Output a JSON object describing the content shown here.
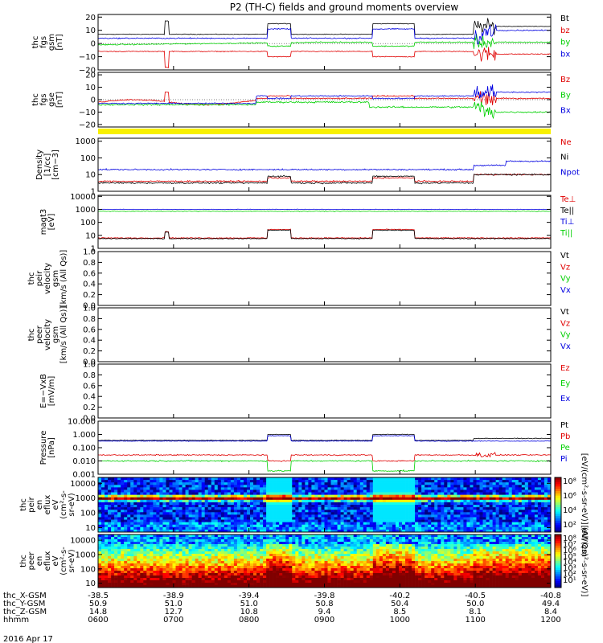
{
  "title": "P2 (TH-C) fields and ground moments overview",
  "date_label": "2016 Apr 17",
  "colors": {
    "black": "#000000",
    "red": "#e00000",
    "green": "#00d000",
    "blue": "#0000e0",
    "yellow": "#f8f000"
  },
  "chart_data": [
    {
      "type": "line",
      "ylabel": [
        "thc",
        "fgs",
        "gsm",
        "[nT]"
      ],
      "yticks": [
        "20",
        "10",
        "0",
        "−10",
        "−20"
      ],
      "ylim": [
        -20,
        22
      ],
      "series": [
        {
          "name": "Bt",
          "color": "black"
        },
        {
          "name": "bz",
          "color": "red"
        },
        {
          "name": "by",
          "color": "green"
        },
        {
          "name": "bx",
          "color": "blue"
        }
      ]
    },
    {
      "type": "line",
      "ylabel": [
        "thc",
        "fgs",
        "gse",
        "[nT]"
      ],
      "yticks": [
        "20",
        "10",
        "0",
        "−10",
        "−20"
      ],
      "ylim": [
        -22,
        22
      ],
      "series": [
        {
          "name": "Bz",
          "color": "red"
        },
        {
          "name": "By",
          "color": "green"
        },
        {
          "name": "Bx",
          "color": "blue"
        }
      ]
    },
    {
      "type": "line",
      "ylabel": [
        "Density",
        "[1/cc]",
        "[cm−3]"
      ],
      "yticks": [
        "1000",
        "100",
        "10",
        "1"
      ],
      "yscale": "log",
      "ylim": [
        1,
        1500
      ],
      "series": [
        {
          "name": "Ne",
          "color": "red"
        },
        {
          "name": "Ni",
          "color": "black"
        },
        {
          "name": "Npot",
          "color": "blue"
        }
      ]
    },
    {
      "type": "line",
      "ylabel": [
        "magt3",
        "[eV]"
      ],
      "yticks": [
        "10000",
        "1000",
        "100",
        "10",
        "1"
      ],
      "yscale": "log",
      "ylim": [
        1,
        12000
      ],
      "series": [
        {
          "name": "Te⊥",
          "color": "red"
        },
        {
          "name": "Te||",
          "color": "black"
        },
        {
          "name": "Ti⊥",
          "color": "blue"
        },
        {
          "name": "Ti||",
          "color": "green"
        }
      ]
    },
    {
      "type": "line",
      "ylabel": [
        "thc",
        "peir",
        "velocity",
        "gsm",
        "[km/s (All Qs)]"
      ],
      "yticks": [
        "1.0",
        "0.8",
        "0.6",
        "0.4",
        "0.2",
        "0.0"
      ],
      "ylim": [
        0,
        1
      ],
      "series": [
        {
          "name": "Vt",
          "color": "black"
        },
        {
          "name": "Vz",
          "color": "red"
        },
        {
          "name": "Vy",
          "color": "green"
        },
        {
          "name": "Vx",
          "color": "blue"
        }
      ]
    },
    {
      "type": "line",
      "ylabel": [
        "thc",
        "peer",
        "velocity",
        "gsm",
        "[km/s (All Qs)]"
      ],
      "yticks": [
        "1.0",
        "0.8",
        "0.6",
        "0.4",
        "0.2",
        "0.0"
      ],
      "ylim": [
        0,
        1
      ],
      "series": [
        {
          "name": "Vt",
          "color": "black"
        },
        {
          "name": "Vz",
          "color": "red"
        },
        {
          "name": "Vy",
          "color": "green"
        },
        {
          "name": "Vx",
          "color": "blue"
        }
      ]
    },
    {
      "type": "line",
      "ylabel": [
        "E=−VxB",
        "[mV/m]"
      ],
      "yticks": [
        "1.0",
        "0.8",
        "0.6",
        "0.4",
        "0.2",
        "0.0"
      ],
      "ylim": [
        0,
        1
      ],
      "series": [
        {
          "name": "Ez",
          "color": "red"
        },
        {
          "name": "Ey",
          "color": "green"
        },
        {
          "name": "Ex",
          "color": "blue"
        }
      ]
    },
    {
      "type": "line",
      "ylabel": [
        "Pressure",
        "[nPa]"
      ],
      "yticks": [
        "10.000",
        "1.000",
        "0.100",
        "0.010",
        "0.001"
      ],
      "yscale": "log",
      "ylim": [
        0.001,
        10
      ],
      "series": [
        {
          "name": "Pt",
          "color": "black"
        },
        {
          "name": "Pb",
          "color": "red"
        },
        {
          "name": "Pe",
          "color": "green"
        },
        {
          "name": "Pi",
          "color": "blue"
        }
      ]
    },
    {
      "type": "heatmap",
      "ylabel": [
        "thc",
        "peir",
        "en",
        "eflux",
        "eV",
        "(cm²-s-",
        "sr-eV)"
      ],
      "yticks": [
        "10000",
        "1000",
        "100",
        "10"
      ],
      "yscale": "log",
      "ylim": [
        5,
        25000
      ],
      "colorbar_ticks": [
        "10⁸",
        "10⁶",
        "10⁴",
        "10²"
      ],
      "colorbar_label": "[eV/(cm²-s-sr-eV)] (All Qs)"
    },
    {
      "type": "heatmap",
      "ylabel": [
        "thc",
        "peer",
        "en",
        "eflux",
        "eV",
        "(cm²-s-",
        "sr-eV)"
      ],
      "yticks": [
        "10000",
        "1000",
        "100",
        "10"
      ],
      "yscale": "log",
      "ylim": [
        5,
        25000
      ],
      "colorbar_ticks": [
        "10⁸",
        "10⁷",
        "10⁶",
        "10⁵",
        "10⁴",
        "10³",
        "10²",
        "10¹"
      ],
      "colorbar_label": "[eV/(cm²-s-sr-eV)]"
    }
  ],
  "ephemeris": {
    "rows": [
      {
        "label": "thc_X-GSM",
        "values": [
          "-38.5",
          "-38.9",
          "-39.4",
          "-39.8",
          "-40.2",
          "-40.5",
          "-40.8"
        ]
      },
      {
        "label": "thc_Y-GSM",
        "values": [
          "50.9",
          "51.0",
          "51.0",
          "50.8",
          "50.4",
          "50.0",
          "49.4"
        ]
      },
      {
        "label": "thc_Z-GSM",
        "values": [
          "14.8",
          "12.7",
          "10.8",
          "9.4",
          "8.5",
          "8.1",
          "8.4"
        ]
      },
      {
        "label": "hhmm",
        "values": [
          "0600",
          "0700",
          "0800",
          "0900",
          "1000",
          "1100",
          "1200"
        ]
      }
    ]
  },
  "time_axis": {
    "start_hour": 6,
    "end_hour": 12
  }
}
